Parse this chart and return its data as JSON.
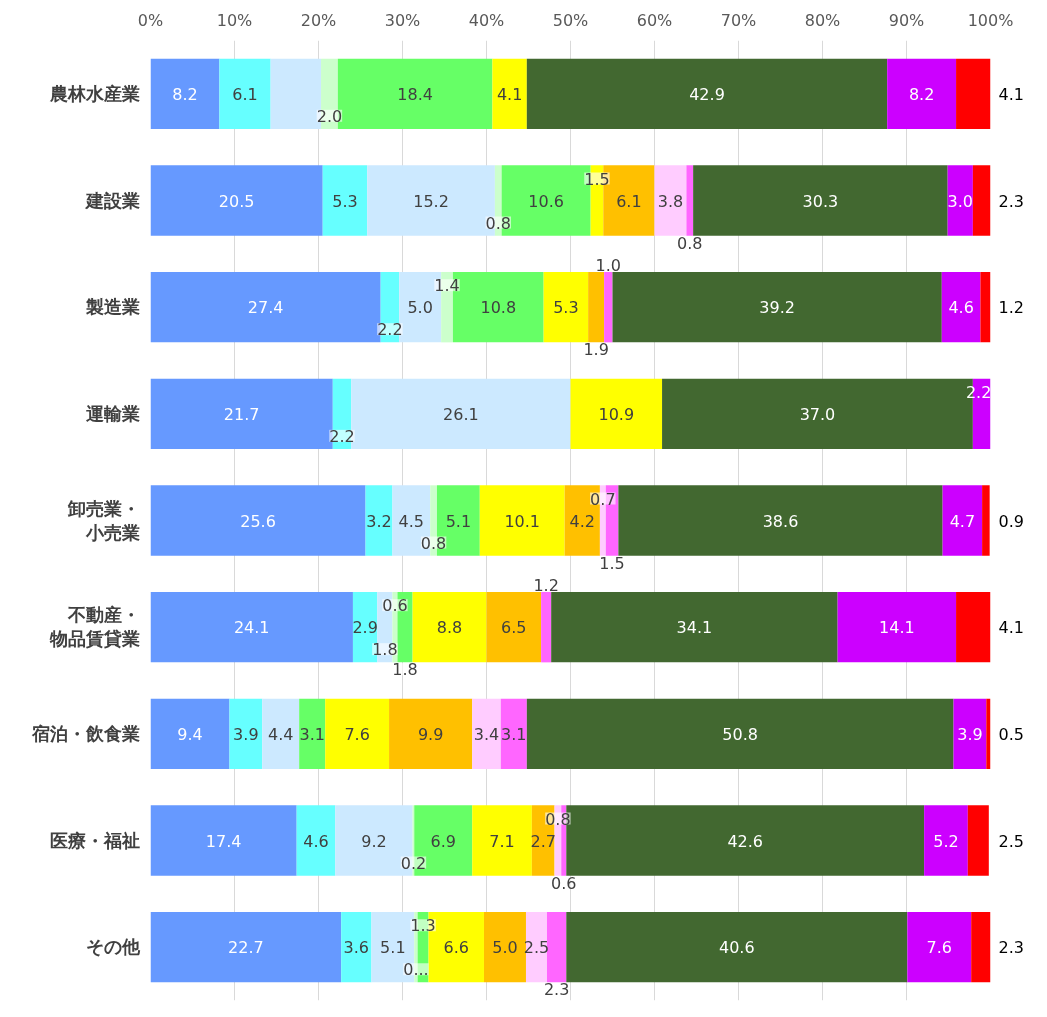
{
  "chart_data": {
    "type": "bar",
    "orientation": "horizontal",
    "stacked": true,
    "categories": [
      "農林水産業",
      "建設業",
      "製造業",
      "運輸業",
      "卸売業・小売業",
      "不動産・物品賃貸業",
      "宿泊・飲食業",
      "医療・福祉",
      "その他"
    ],
    "series": [
      {
        "color": "#6699ff",
        "values": [
          8.2,
          20.5,
          27.4,
          21.7,
          25.6,
          24.1,
          9.4,
          17.4,
          22.7
        ],
        "value_labels": [
          "8.2",
          "20.5",
          "27.4",
          "21.7",
          "25.6",
          "24.1",
          "9.4",
          "17.4",
          "22.7"
        ]
      },
      {
        "color": "#66ffff",
        "values": [
          6.1,
          5.3,
          2.2,
          2.2,
          3.2,
          2.9,
          3.9,
          4.6,
          3.6
        ],
        "value_labels": [
          "6.1",
          "5.3",
          "2.2",
          "2.2",
          "3.2",
          "2.9",
          "3.9",
          "4.6",
          "3.6"
        ]
      },
      {
        "color": "#cce9ff",
        "values": [
          6.0,
          15.2,
          5.0,
          26.1,
          4.5,
          1.8,
          4.4,
          9.2,
          5.1
        ],
        "value_labels": [
          null,
          "15.2",
          "5.0",
          "26.1",
          "4.5",
          "1.8",
          "4.4",
          "9.2",
          "5.1"
        ]
      },
      {
        "color": "#ccffcc",
        "values": [
          2.0,
          0.8,
          1.4,
          null,
          0.8,
          0.6,
          null,
          0.2,
          0.4
        ],
        "value_labels": [
          "2.0",
          "0.8",
          "1.4",
          null,
          "0.8",
          "0.6",
          null,
          "0.2",
          "0..."
        ]
      },
      {
        "color": "#66ff66",
        "values": [
          18.4,
          10.6,
          10.8,
          null,
          5.1,
          1.8,
          3.1,
          6.9,
          1.3
        ],
        "value_labels": [
          "18.4",
          "10.6",
          "10.8",
          null,
          "5.1",
          "1.8",
          "3.1",
          "6.9",
          "1.3"
        ]
      },
      {
        "color": "#ffff00",
        "values": [
          4.1,
          1.5,
          5.3,
          10.9,
          10.1,
          8.8,
          7.6,
          7.1,
          6.6
        ],
        "value_labels": [
          "4.1",
          "1.5",
          "5.3",
          "10.9",
          "10.1",
          "8.8",
          "7.6",
          "7.1",
          "6.6"
        ]
      },
      {
        "color": "#ffc000",
        "values": [
          null,
          6.1,
          1.9,
          null,
          4.2,
          6.5,
          9.9,
          2.7,
          5.0
        ],
        "value_labels": [
          null,
          "6.1",
          "1.9",
          null,
          "4.2",
          "6.5",
          "9.9",
          "2.7",
          "5.0"
        ]
      },
      {
        "color": "#ffccff",
        "values": [
          null,
          3.8,
          null,
          null,
          0.7,
          null,
          3.4,
          0.8,
          2.5
        ],
        "value_labels": [
          null,
          "3.8",
          null,
          null,
          "0.7",
          null,
          "3.4",
          "0.8",
          "2.5"
        ]
      },
      {
        "color": "#ff66ff",
        "values": [
          null,
          0.8,
          1.0,
          null,
          1.5,
          1.2,
          3.1,
          0.6,
          2.3
        ],
        "value_labels": [
          null,
          "0.8",
          "1.0",
          null,
          "1.5",
          "1.2",
          "3.1",
          "0.6",
          "2.3"
        ]
      },
      {
        "color": "#426830",
        "values": [
          42.9,
          30.3,
          39.2,
          37.0,
          38.6,
          34.1,
          50.8,
          42.6,
          40.6
        ],
        "value_labels": [
          "42.9",
          "30.3",
          "39.2",
          "37.0",
          "38.6",
          "34.1",
          "50.8",
          "42.6",
          "40.6"
        ]
      },
      {
        "color": "#cc00ff",
        "values": [
          8.2,
          3.0,
          4.6,
          2.2,
          4.7,
          14.1,
          3.9,
          5.2,
          7.6
        ],
        "value_labels": [
          "8.2",
          "3.0",
          "4.6",
          "2.2",
          "4.7",
          "14.1",
          "3.9",
          "5.2",
          "7.6"
        ]
      },
      {
        "color": "#ff0000",
        "values": [
          4.1,
          2.3,
          1.2,
          null,
          0.9,
          4.1,
          0.5,
          2.5,
          2.3
        ],
        "value_labels": [
          "4.1",
          "2.3",
          "1.2",
          null,
          "0.9",
          "4.1",
          "0.5",
          "2.5",
          "2.3"
        ]
      }
    ],
    "xlim": [
      0,
      100
    ],
    "xticks": [
      {
        "value": 0,
        "label": "0%"
      },
      {
        "value": 10,
        "label": "10%"
      },
      {
        "value": 20,
        "label": "20%"
      },
      {
        "value": 30,
        "label": "30%"
      },
      {
        "value": 40,
        "label": "40%"
      },
      {
        "value": 50,
        "label": "50%"
      },
      {
        "value": 60,
        "label": "60%"
      },
      {
        "value": 70,
        "label": "70%"
      },
      {
        "value": 80,
        "label": "80%"
      },
      {
        "value": 90,
        "label": "90%"
      },
      {
        "value": 100,
        "label": "100%"
      }
    ],
    "grid": "x"
  }
}
